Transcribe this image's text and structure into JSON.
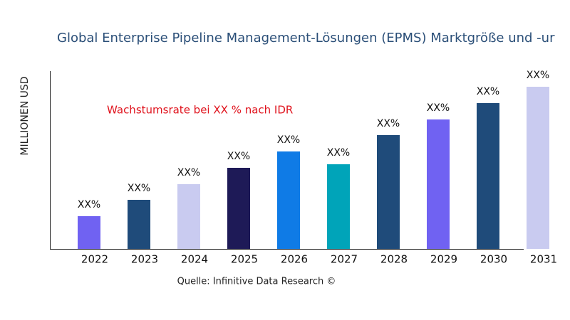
{
  "chart_data": {
    "type": "bar",
    "title": "Global Enterprise Pipeline Management-Lösungen (EPMS) Marktgröße und -ur",
    "y_label": "MILLIONEN USD",
    "annotation": "Wachstumsrate bei XX % nach IDR",
    "source": "Quelle: Infinitive Data Research ©",
    "categories": [
      "2022",
      "2023",
      "2024",
      "2025",
      "2026",
      "2027",
      "2028",
      "2029",
      "2030",
      "2031"
    ],
    "values": [
      46,
      69,
      91,
      114,
      137,
      119,
      160,
      182,
      205,
      228
    ],
    "value_labels": [
      "XX%",
      "XX%",
      "XX%",
      "XX%",
      "XX%",
      "XX%",
      "XX%",
      "XX%",
      "XX%",
      "XX%"
    ],
    "colors": [
      "#7062f2",
      "#1f4b7a",
      "#c9cbf0",
      "#1e1a57",
      "#0f7be6",
      "#00a4b9",
      "#1f4b7a",
      "#7062f2",
      "#1f4b7a",
      "#c9cbf0"
    ],
    "ylim": [
      0,
      250
    ]
  }
}
